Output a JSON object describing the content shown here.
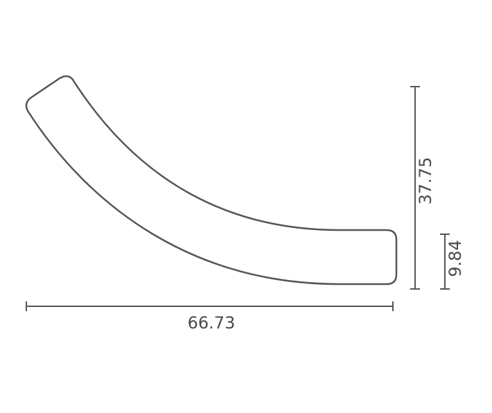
{
  "dimensions": {
    "width": "66.73",
    "height": "37.75",
    "end_height": "9.84"
  }
}
